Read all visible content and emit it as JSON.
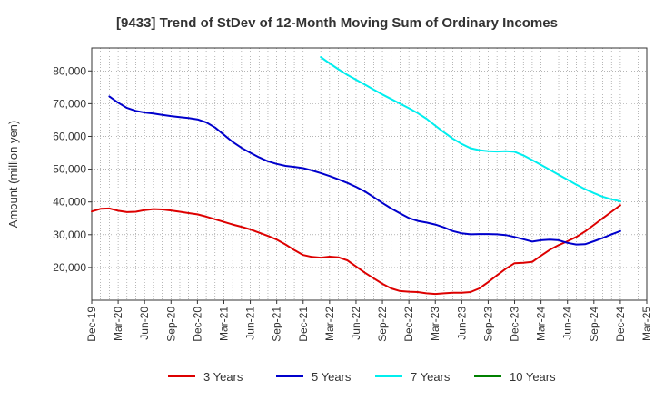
{
  "chart_data": {
    "type": "line",
    "title": "[9433]  Trend of StDev of 12-Month Moving Sum of Ordinary Incomes",
    "ylabel": "Amount (million yen)",
    "xlabel": "",
    "ylim": [
      10000,
      87000
    ],
    "yticks": [
      20000,
      30000,
      40000,
      50000,
      60000,
      70000,
      80000
    ],
    "ytick_labels": [
      "20,000",
      "30,000",
      "40,000",
      "50,000",
      "60,000",
      "70,000",
      "80,000"
    ],
    "xlim": [
      "2019-12",
      "2025-03"
    ],
    "xticks": [
      "2019-12",
      "2020-03",
      "2020-06",
      "2020-09",
      "2020-12",
      "2021-03",
      "2021-06",
      "2021-09",
      "2021-12",
      "2022-03",
      "2022-06",
      "2022-09",
      "2022-12",
      "2023-03",
      "2023-06",
      "2023-09",
      "2023-12",
      "2024-03",
      "2024-06",
      "2024-09",
      "2024-12",
      "2025-03"
    ],
    "xtick_labels": [
      "Dec-19",
      "Mar-20",
      "Jun-20",
      "Sep-20",
      "Dec-20",
      "Mar-21",
      "Jun-21",
      "Sep-21",
      "Dec-21",
      "Mar-22",
      "Jun-22",
      "Sep-22",
      "Dec-22",
      "Mar-23",
      "Jun-23",
      "Sep-23",
      "Dec-23",
      "Mar-24",
      "Jun-24",
      "Sep-24",
      "Dec-24",
      "Mar-25"
    ],
    "grid": true,
    "legend_position": "bottom",
    "series": [
      {
        "name": "3 Years",
        "color": "#dd0000",
        "points": [
          [
            "2019-12",
            37100
          ],
          [
            "2020-01",
            37900
          ],
          [
            "2020-02",
            38000
          ],
          [
            "2020-03",
            37300
          ],
          [
            "2020-04",
            36900
          ],
          [
            "2020-05",
            37000
          ],
          [
            "2020-06",
            37500
          ],
          [
            "2020-07",
            37800
          ],
          [
            "2020-08",
            37700
          ],
          [
            "2020-09",
            37400
          ],
          [
            "2020-10",
            37000
          ],
          [
            "2020-11",
            36600
          ],
          [
            "2020-12",
            36200
          ],
          [
            "2021-01",
            35500
          ],
          [
            "2021-02",
            34700
          ],
          [
            "2021-03",
            33900
          ],
          [
            "2021-04",
            33100
          ],
          [
            "2021-05",
            32400
          ],
          [
            "2021-06",
            31600
          ],
          [
            "2021-07",
            30600
          ],
          [
            "2021-08",
            29600
          ],
          [
            "2021-09",
            28500
          ],
          [
            "2021-10",
            27000
          ],
          [
            "2021-11",
            25300
          ],
          [
            "2021-12",
            23800
          ],
          [
            "2022-01",
            23200
          ],
          [
            "2022-02",
            23000
          ],
          [
            "2022-03",
            23300
          ],
          [
            "2022-04",
            23100
          ],
          [
            "2022-05",
            22200
          ],
          [
            "2022-06",
            20300
          ],
          [
            "2022-07",
            18400
          ],
          [
            "2022-08",
            16700
          ],
          [
            "2022-09",
            15000
          ],
          [
            "2022-10",
            13600
          ],
          [
            "2022-11",
            12800
          ],
          [
            "2022-12",
            12600
          ],
          [
            "2023-01",
            12500
          ],
          [
            "2023-02",
            12100
          ],
          [
            "2023-03",
            11900
          ],
          [
            "2023-04",
            12100
          ],
          [
            "2023-05",
            12300
          ],
          [
            "2023-06",
            12300
          ],
          [
            "2023-07",
            12500
          ],
          [
            "2023-08",
            13600
          ],
          [
            "2023-09",
            15500
          ],
          [
            "2023-10",
            17600
          ],
          [
            "2023-11",
            19600
          ],
          [
            "2023-12",
            21300
          ],
          [
            "2024-01",
            21400
          ],
          [
            "2024-02",
            21700
          ],
          [
            "2024-03",
            23600
          ],
          [
            "2024-04",
            25400
          ],
          [
            "2024-05",
            26800
          ],
          [
            "2024-06",
            28000
          ],
          [
            "2024-07",
            29300
          ],
          [
            "2024-08",
            31000
          ],
          [
            "2024-09",
            33000
          ],
          [
            "2024-10",
            35000
          ],
          [
            "2024-11",
            37000
          ],
          [
            "2024-12",
            39000
          ]
        ]
      },
      {
        "name": "5 Years",
        "color": "#0000cc",
        "points": [
          [
            "2020-02",
            72200
          ],
          [
            "2020-03",
            70300
          ],
          [
            "2020-04",
            68700
          ],
          [
            "2020-05",
            67800
          ],
          [
            "2020-06",
            67300
          ],
          [
            "2020-07",
            67000
          ],
          [
            "2020-08",
            66600
          ],
          [
            "2020-09",
            66200
          ],
          [
            "2020-10",
            65900
          ],
          [
            "2020-11",
            65600
          ],
          [
            "2020-12",
            65200
          ],
          [
            "2021-01",
            64300
          ],
          [
            "2021-02",
            62700
          ],
          [
            "2021-03",
            60500
          ],
          [
            "2021-04",
            58300
          ],
          [
            "2021-05",
            56500
          ],
          [
            "2021-06",
            55000
          ],
          [
            "2021-07",
            53600
          ],
          [
            "2021-08",
            52400
          ],
          [
            "2021-09",
            51600
          ],
          [
            "2021-10",
            51000
          ],
          [
            "2021-11",
            50700
          ],
          [
            "2021-12",
            50300
          ],
          [
            "2022-01",
            49600
          ],
          [
            "2022-02",
            48800
          ],
          [
            "2022-03",
            47900
          ],
          [
            "2022-04",
            46900
          ],
          [
            "2022-05",
            45800
          ],
          [
            "2022-06",
            44600
          ],
          [
            "2022-07",
            43200
          ],
          [
            "2022-08",
            41500
          ],
          [
            "2022-09",
            39700
          ],
          [
            "2022-10",
            38000
          ],
          [
            "2022-11",
            36500
          ],
          [
            "2022-12",
            35100
          ],
          [
            "2023-01",
            34200
          ],
          [
            "2023-02",
            33700
          ],
          [
            "2023-03",
            33100
          ],
          [
            "2023-04",
            32200
          ],
          [
            "2023-05",
            31100
          ],
          [
            "2023-06",
            30400
          ],
          [
            "2023-07",
            30100
          ],
          [
            "2023-08",
            30200
          ],
          [
            "2023-09",
            30200
          ],
          [
            "2023-10",
            30100
          ],
          [
            "2023-11",
            29900
          ],
          [
            "2023-12",
            29300
          ],
          [
            "2024-01",
            28600
          ],
          [
            "2024-02",
            27900
          ],
          [
            "2024-03",
            28300
          ],
          [
            "2024-04",
            28500
          ],
          [
            "2024-05",
            28300
          ],
          [
            "2024-06",
            27500
          ],
          [
            "2024-07",
            27000
          ],
          [
            "2024-08",
            27100
          ],
          [
            "2024-09",
            28000
          ],
          [
            "2024-10",
            29000
          ],
          [
            "2024-11",
            30100
          ],
          [
            "2024-12",
            31100
          ]
        ]
      },
      {
        "name": "7 Years",
        "color": "#00eeee",
        "points": [
          [
            "2022-02",
            84200
          ],
          [
            "2022-03",
            82300
          ],
          [
            "2022-04",
            80500
          ],
          [
            "2022-05",
            78800
          ],
          [
            "2022-06",
            77300
          ],
          [
            "2022-07",
            75800
          ],
          [
            "2022-08",
            74300
          ],
          [
            "2022-09",
            72800
          ],
          [
            "2022-10",
            71400
          ],
          [
            "2022-11",
            70000
          ],
          [
            "2022-12",
            68600
          ],
          [
            "2023-01",
            67100
          ],
          [
            "2023-02",
            65400
          ],
          [
            "2023-03",
            63300
          ],
          [
            "2023-04",
            61200
          ],
          [
            "2023-05",
            59300
          ],
          [
            "2023-06",
            57700
          ],
          [
            "2023-07",
            56400
          ],
          [
            "2023-08",
            55800
          ],
          [
            "2023-09",
            55500
          ],
          [
            "2023-10",
            55400
          ],
          [
            "2023-11",
            55500
          ],
          [
            "2023-12",
            55300
          ],
          [
            "2024-01",
            54200
          ],
          [
            "2024-02",
            52800
          ],
          [
            "2024-03",
            51300
          ],
          [
            "2024-04",
            49800
          ],
          [
            "2024-05",
            48300
          ],
          [
            "2024-06",
            46800
          ],
          [
            "2024-07",
            45300
          ],
          [
            "2024-08",
            43900
          ],
          [
            "2024-09",
            42700
          ],
          [
            "2024-10",
            41600
          ],
          [
            "2024-11",
            40800
          ],
          [
            "2024-12",
            40200
          ]
        ]
      },
      {
        "name": "10 Years",
        "color": "#008000",
        "points": []
      }
    ]
  }
}
